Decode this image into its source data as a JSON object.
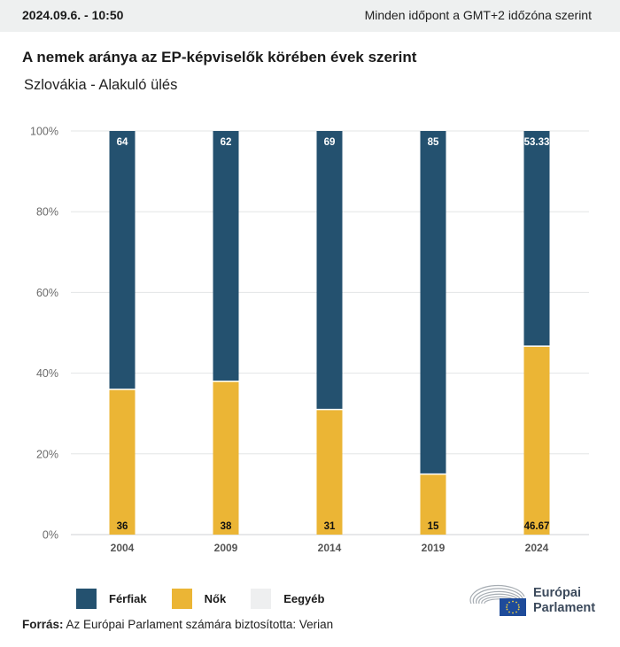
{
  "header": {
    "datetime": "2024.09.6. - 10:50",
    "timezone_note": "Minden időpont a GMT+2 időzóna szerint"
  },
  "title": "A nemek aránya az EP-képviselők körében évek szerint",
  "subtitle": "Szlovákia - Alakuló ülés",
  "legend": [
    {
      "label": "Férfiak",
      "color": "#24516f"
    },
    {
      "label": "Nők",
      "color": "#ebb535"
    },
    {
      "label": "Eegyéb",
      "color": "#eeeff0"
    }
  ],
  "source": {
    "prefix": "Forrás:",
    "text": " Az Európai Parlament számára biztosította: Verian"
  },
  "logo": {
    "line1": "Európai",
    "line2": "Parlament"
  },
  "chart_data": {
    "type": "bar",
    "stacked": true,
    "title": "A nemek aránya az EP-képviselők körében évek szerint",
    "subtitle": "Szlovákia - Alakuló ülés",
    "categories": [
      "2004",
      "2009",
      "2014",
      "2019",
      "2024"
    ],
    "series": [
      {
        "name": "Nők",
        "color": "#ebb535",
        "values": [
          36,
          38,
          31,
          15,
          46.67
        ],
        "labels": [
          "36",
          "38",
          "31",
          "15",
          "46.67"
        ]
      },
      {
        "name": "Férfiak",
        "color": "#24516f",
        "values": [
          64,
          62,
          69,
          85,
          53.33
        ],
        "labels": [
          "64",
          "62",
          "69",
          "85",
          "53.33"
        ]
      },
      {
        "name": "Eegyéb",
        "color": "#eeeff0",
        "values": [
          0,
          0,
          0,
          0,
          0
        ]
      }
    ],
    "yticks": [
      "0%",
      "20%",
      "40%",
      "60%",
      "80%",
      "100%"
    ],
    "ytick_values": [
      0,
      20,
      40,
      60,
      80,
      100
    ],
    "ylim": [
      0,
      100
    ],
    "xlabel": "",
    "ylabel": "",
    "grid": true,
    "legend_position": "bottom-left"
  }
}
